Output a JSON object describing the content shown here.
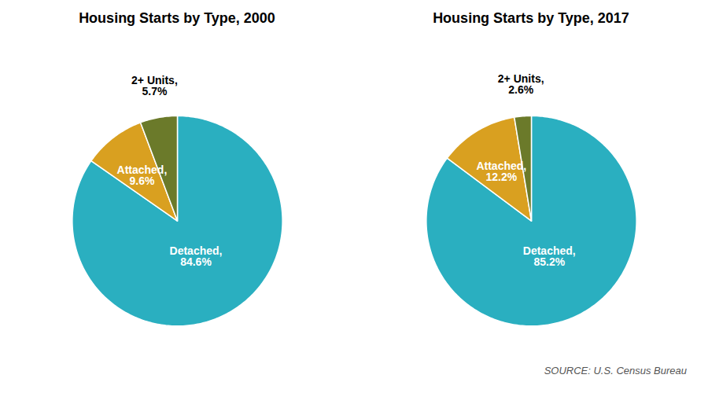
{
  "chart_data": [
    {
      "type": "pie",
      "title": "Housing Starts by Type, 2000",
      "categories": [
        "Detached",
        "Attached",
        "2+ Units"
      ],
      "values": [
        84.6,
        9.6,
        5.7
      ],
      "value_labels": [
        "Detached,\n84.6%",
        "Attached,\n9.6%",
        "2+ Units,\n5.7%"
      ],
      "colors": [
        "#2AAFC0",
        "#D9A020",
        "#6B7A2A"
      ],
      "data_labels": true
    },
    {
      "type": "pie",
      "title": "Housing Starts by Type, 2017",
      "categories": [
        "Detached",
        "Attached",
        "2+ Units"
      ],
      "values": [
        85.2,
        12.2,
        2.6
      ],
      "value_labels": [
        "Detached,\n85.2%",
        "Attached,\n12.2%",
        "2+ Units,\n2.6%"
      ],
      "colors": [
        "#2AAFC0",
        "#D9A020",
        "#6B7A2A"
      ],
      "data_labels": true,
      "annotations": [
        "SOURCE: U.S. Census Bureau"
      ]
    }
  ]
}
